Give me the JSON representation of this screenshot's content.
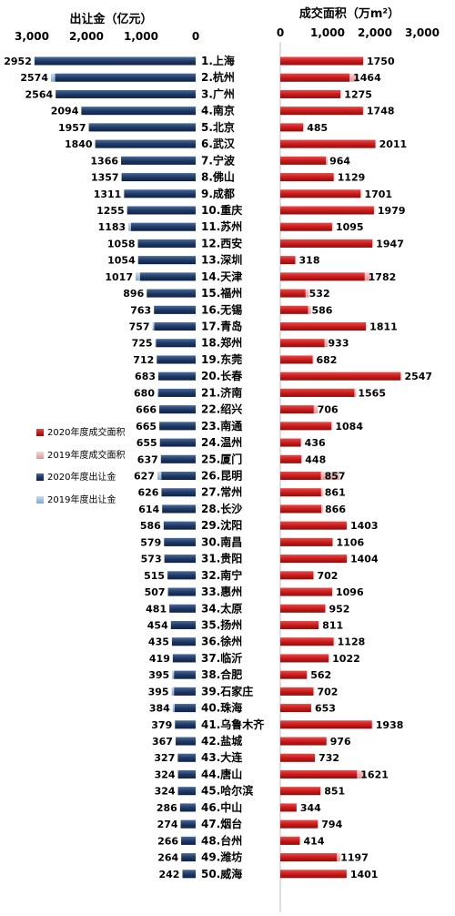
{
  "chart_data": [
    {
      "type": "bar",
      "orientation": "horizontal-reversed",
      "title": "出让金（亿元）",
      "ylim": [
        0,
        3000
      ],
      "ticks": [
        "3,000",
        "2,000",
        "1,000",
        "0"
      ],
      "tick_values": [
        3000,
        2000,
        1000,
        0
      ],
      "series": [
        {
          "name": "2020年度出让金",
          "color": "#1f3a66",
          "values": [
            2952,
            2574,
            2564,
            2094,
            1957,
            1840,
            1366,
            1357,
            1311,
            1255,
            1183,
            1058,
            1054,
            1017,
            896,
            763,
            757,
            725,
            712,
            683,
            680,
            666,
            665,
            655,
            637,
            627,
            626,
            614,
            586,
            579,
            573,
            515,
            507,
            481,
            454,
            435,
            419,
            395,
            395,
            384,
            379,
            367,
            327,
            324,
            324,
            286,
            274,
            266,
            264,
            242
          ]
        },
        {
          "name": "2019年度出让金",
          "color": "#8fb3dc",
          "values": [
            2900,
            2650,
            2500,
            2050,
            1900,
            1800,
            1350,
            1300,
            1290,
            1230,
            1230,
            1040,
            1020,
            1100,
            880,
            750,
            790,
            740,
            700,
            670,
            700,
            650,
            640,
            640,
            620,
            700,
            610,
            600,
            570,
            570,
            560,
            510,
            500,
            470,
            440,
            420,
            410,
            430,
            440,
            420,
            370,
            360,
            320,
            320,
            315,
            280,
            270,
            260,
            260,
            238
          ]
        }
      ]
    },
    {
      "type": "bar",
      "orientation": "horizontal",
      "title": "成交面积（万m²）",
      "ylim": [
        0,
        3000
      ],
      "ticks": [
        "0",
        "1,000",
        "2,000",
        "3,000"
      ],
      "tick_values": [
        0,
        1000,
        2000,
        3000
      ],
      "series": [
        {
          "name": "2020年度成交面积",
          "color": "#cc1a1a",
          "values": [
            1750,
            1464,
            1275,
            1748,
            485,
            2011,
            964,
            1129,
            1701,
            1979,
            1095,
            1947,
            318,
            1782,
            532,
            586,
            1811,
            933,
            682,
            2547,
            1565,
            706,
            1084,
            436,
            448,
            857,
            861,
            866,
            1403,
            1106,
            1404,
            702,
            1096,
            952,
            811,
            1128,
            1022,
            562,
            702,
            653,
            1938,
            976,
            732,
            1621,
            851,
            344,
            794,
            414,
            1197,
            1401
          ]
        },
        {
          "name": "2019年度成交面积",
          "color": "#e8b4b4",
          "values": [
            1700,
            1650,
            1250,
            1700,
            470,
            1950,
            1000,
            1100,
            1650,
            1950,
            1050,
            1900,
            310,
            1900,
            600,
            650,
            1750,
            1000,
            700,
            2500,
            1600,
            790,
            1050,
            430,
            440,
            1250,
            900,
            900,
            1380,
            1080,
            1380,
            690,
            1080,
            930,
            800,
            1100,
            1000,
            550,
            690,
            640,
            1900,
            950,
            720,
            1800,
            830,
            340,
            780,
            400,
            1270,
            1380
          ]
        }
      ]
    }
  ],
  "categories": [
    "1.上海",
    "2.杭州",
    "3.广州",
    "4.南京",
    "5.北京",
    "6.武汉",
    "7.宁波",
    "8.佛山",
    "9.成都",
    "10.重庆",
    "11.苏州",
    "12.西安",
    "13.深圳",
    "14.天津",
    "15.福州",
    "16.无锡",
    "17.青岛",
    "18.郑州",
    "19.东莞",
    "20.长春",
    "21.济南",
    "22.绍兴",
    "23.南通",
    "24.温州",
    "25.厦门",
    "26.昆明",
    "27.常州",
    "28.长沙",
    "29.沈阳",
    "30.南昌",
    "31.贵阳",
    "32.南宁",
    "33.惠州",
    "34.太原",
    "35.扬州",
    "36.徐州",
    "37.临沂",
    "38.合肥",
    "39.石家庄",
    "40.珠海",
    "41.乌鲁木齐",
    "42.盐城",
    "43.大连",
    "44.唐山",
    "45.哈尔滨",
    "46.中山",
    "47.烟台",
    "48.台州",
    "49.潍坊",
    "50.威海"
  ],
  "legend": {
    "placement": "left-middle",
    "items": [
      {
        "label": "2020年度成交面积",
        "color": "#cc1a1a"
      },
      {
        "label": "2019年度成交面积",
        "color": "#e8b4b4"
      },
      {
        "label": "2020年度出让金",
        "color": "#1f3a66"
      },
      {
        "label": "2019年度出让金",
        "color": "#8fb3dc"
      }
    ]
  }
}
